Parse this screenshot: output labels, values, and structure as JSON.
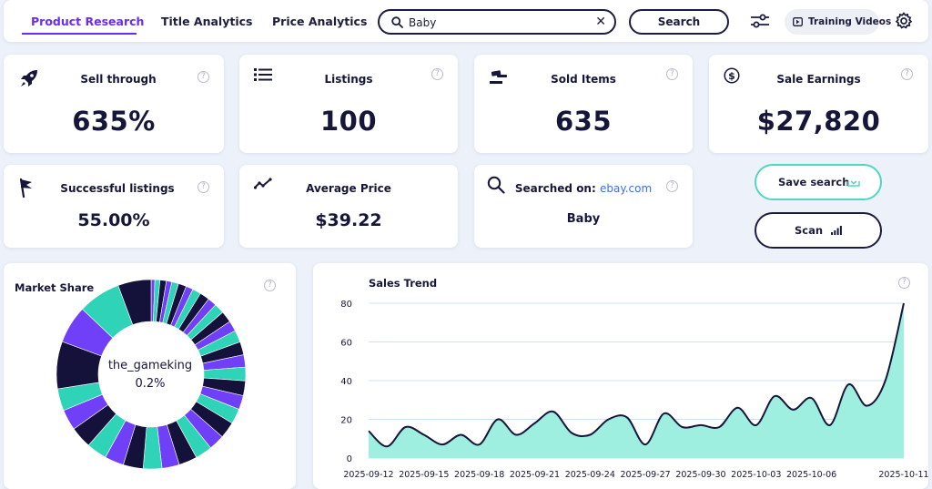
{
  "nav": {
    "tabs": [
      {
        "label": "Product Research",
        "active": true
      },
      {
        "label": "Title Analytics",
        "active": false
      },
      {
        "label": "Price Analytics",
        "active": false
      }
    ],
    "search_value": "Baby",
    "search_button": "Search",
    "training_label": "Training Videos"
  },
  "stats": {
    "sell_through": {
      "label": "Sell through",
      "value": "635%",
      "icon": "rocket-icon"
    },
    "listings": {
      "label": "Listings",
      "value": "100",
      "icon": "list-icon"
    },
    "sold_items": {
      "label": "Sold Items",
      "value": "635",
      "icon": "gavel-icon"
    },
    "sale_earnings": {
      "label": "Sale Earnings",
      "value": "$27,820",
      "icon": "dollar-icon"
    },
    "successful_listings": {
      "label": "Successful listings",
      "value": "55.00%",
      "icon": "flag-icon"
    },
    "average_price": {
      "label": "Average Price",
      "value": "$39.22",
      "icon": "trend-icon"
    },
    "searched_on": {
      "label": "Searched on:",
      "site": "ebay.com",
      "value": "Baby",
      "icon": "search-icon"
    }
  },
  "actions": {
    "save_search": "Save search",
    "scan": "Scan"
  },
  "market_share": {
    "title": "Market Share",
    "center_name": "the_gameking",
    "center_pct": "0.2%",
    "colors": [
      "#7040f8",
      "#2fd3b8",
      "#14123a"
    ]
  },
  "chart_data": {
    "type": "area",
    "title": "Sales Trend",
    "xlabel": "",
    "ylabel": "",
    "ylim": [
      0,
      80
    ],
    "yticks": [
      0,
      20,
      40,
      60,
      80
    ],
    "grid": true,
    "x_tick_labels": [
      "2025-09-12",
      "2025-09-15",
      "2025-09-18",
      "2025-09-21",
      "2025-09-24",
      "2025-09-27",
      "2025-09-30",
      "2025-10-03",
      "2025-10-06",
      "2025-10-11"
    ],
    "x": [
      "2025-09-12",
      "2025-09-13",
      "2025-09-14",
      "2025-09-15",
      "2025-09-16",
      "2025-09-17",
      "2025-09-18",
      "2025-09-19",
      "2025-09-20",
      "2025-09-21",
      "2025-09-22",
      "2025-09-23",
      "2025-09-24",
      "2025-09-25",
      "2025-09-26",
      "2025-09-27",
      "2025-09-28",
      "2025-09-29",
      "2025-09-30",
      "2025-10-01",
      "2025-10-02",
      "2025-10-03",
      "2025-10-04",
      "2025-10-05",
      "2025-10-06",
      "2025-10-07",
      "2025-10-08",
      "2025-10-09",
      "2025-10-10",
      "2025-10-11"
    ],
    "series": [
      {
        "values": [
          14,
          6,
          16,
          12,
          7,
          12,
          7,
          20,
          12,
          18,
          24,
          13,
          12,
          20,
          21,
          7,
          23,
          16,
          17,
          16,
          26,
          17,
          32,
          25,
          31,
          17,
          38,
          27,
          40,
          80
        ]
      }
    ],
    "colors": {
      "line": "#16163a",
      "fill": "#9eefdf",
      "grid": "#cfe3f4"
    }
  }
}
